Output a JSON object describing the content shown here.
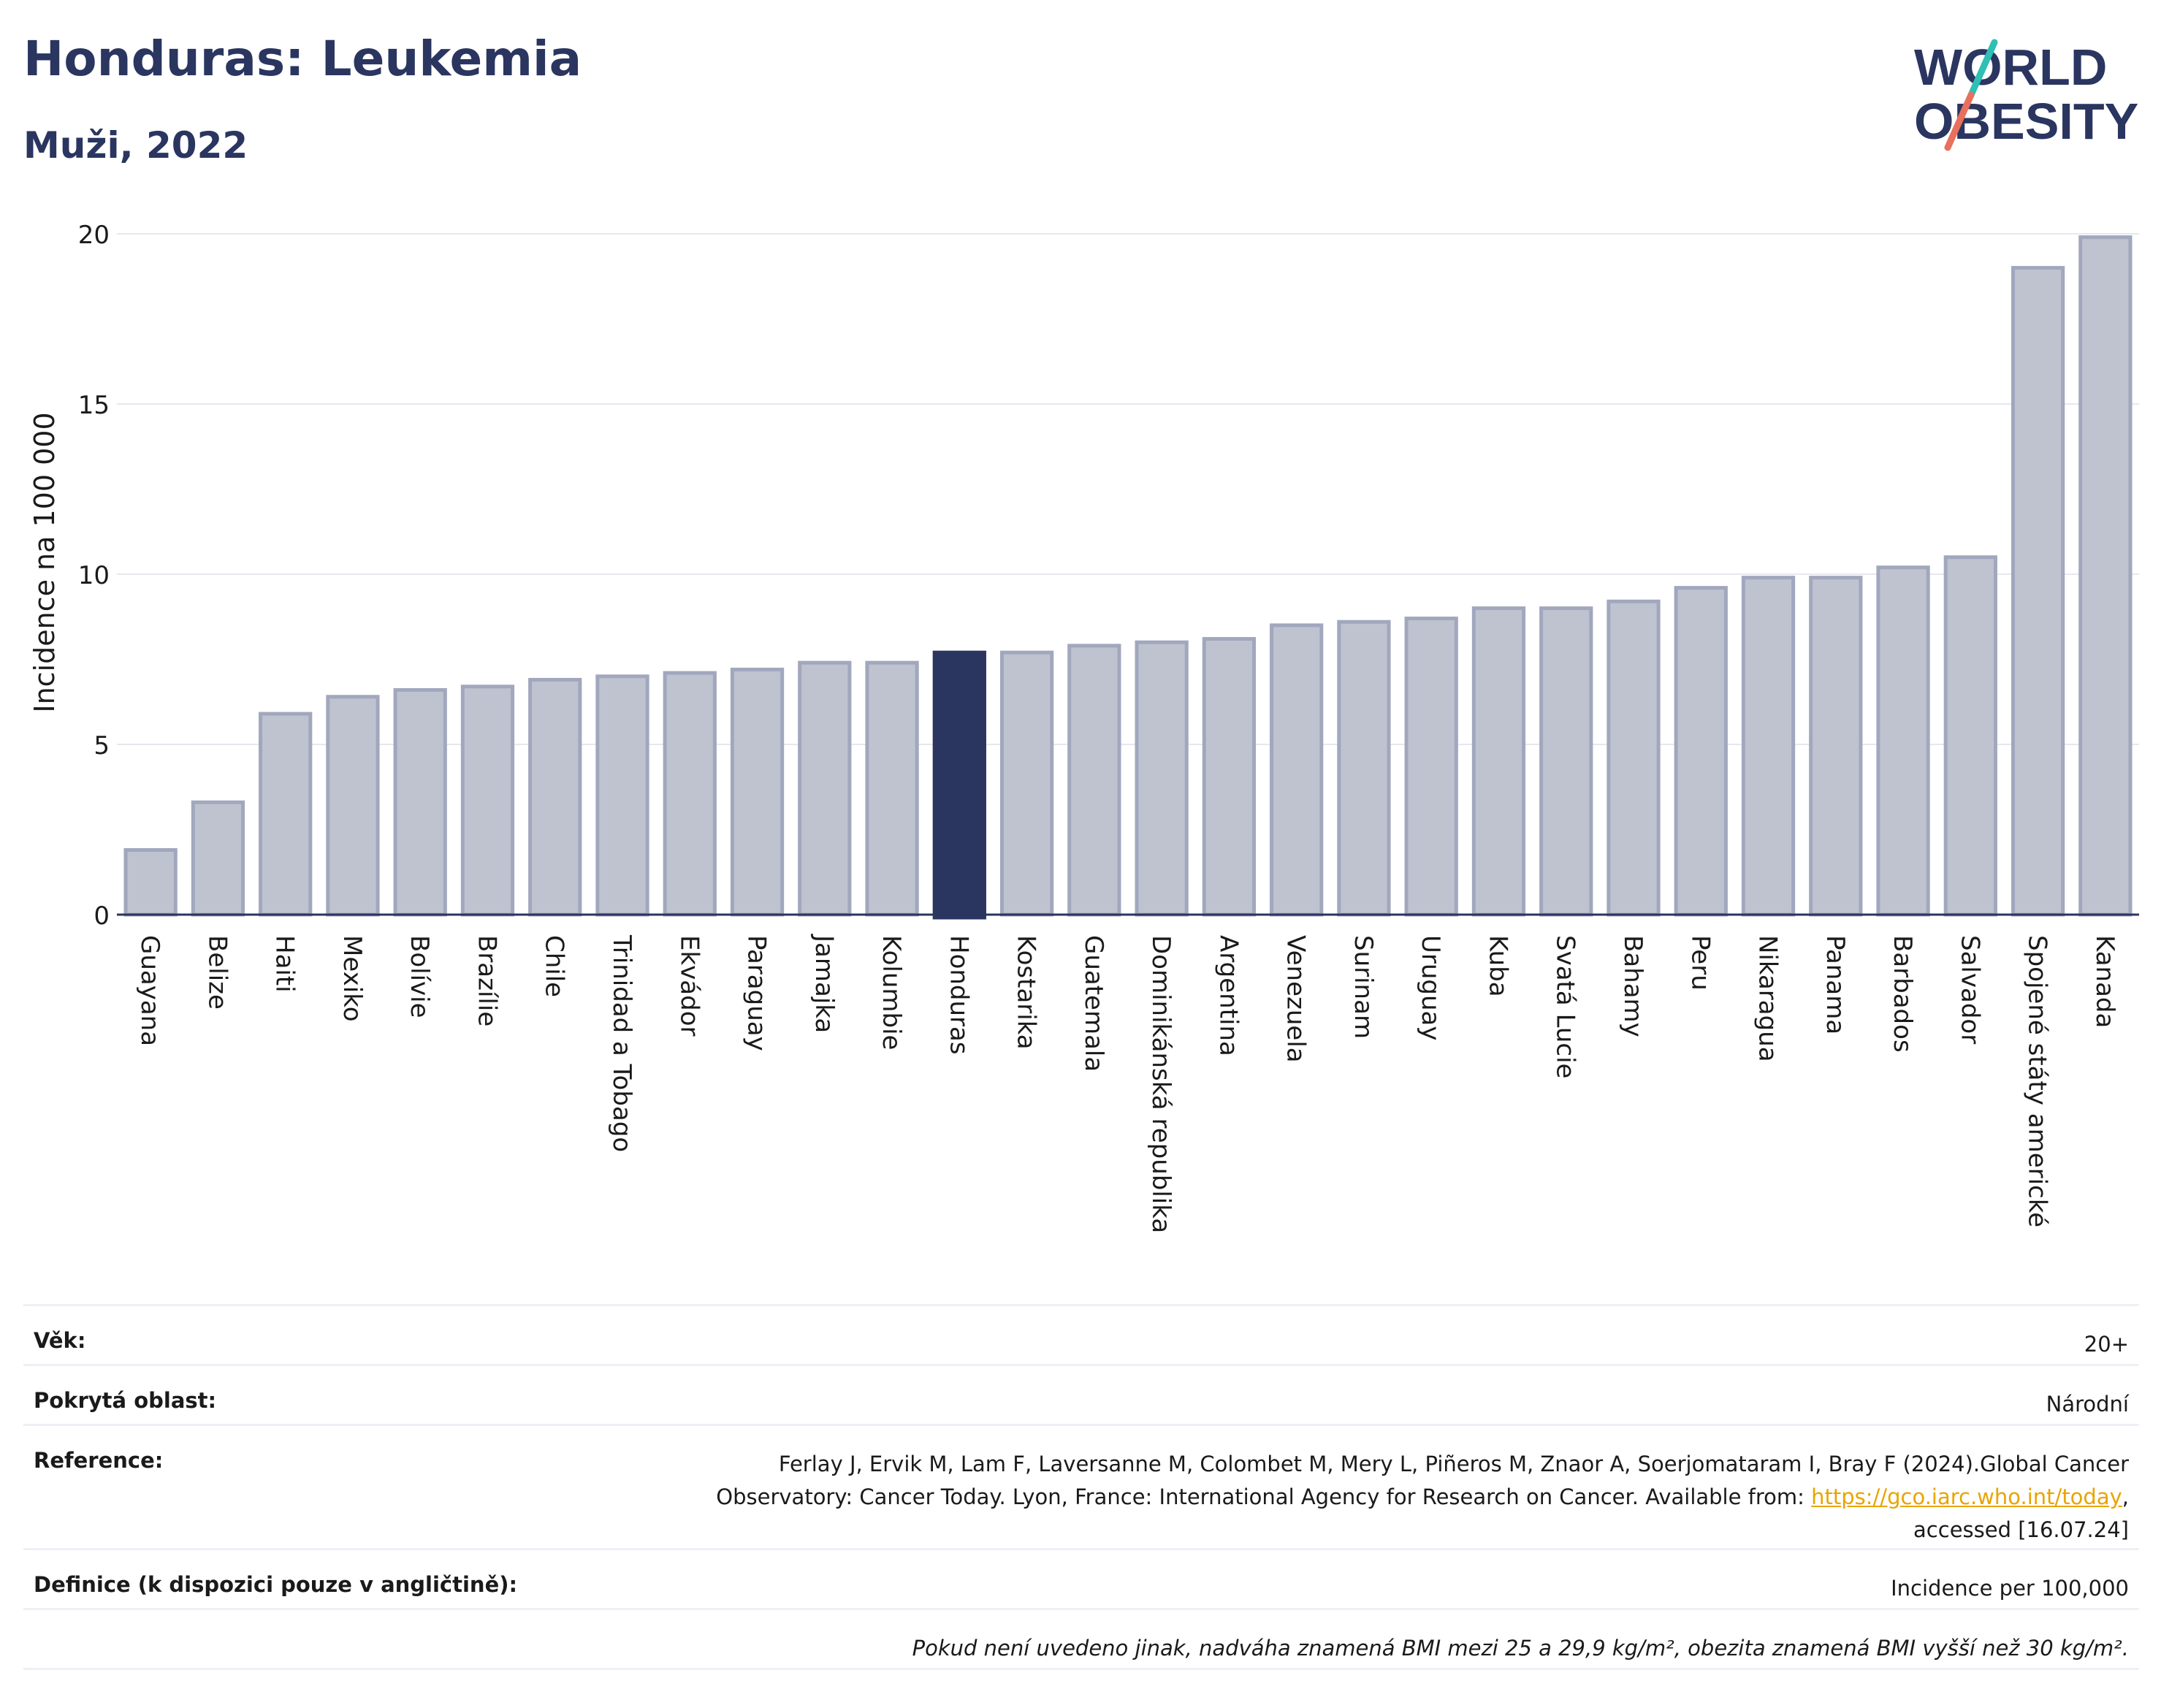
{
  "header": {
    "title": "Honduras: Leukemia",
    "subtitle": "Muži, 2022",
    "logo_line1": "WORLD",
    "logo_line2": "OBESITY"
  },
  "colors": {
    "bar": "#bfc3d0",
    "bar_border": "#a1a7bd",
    "highlight": "#2a3560",
    "grid": "#e6e8ef",
    "axis": "#2a3560",
    "logo_teal": "#2fbfb4",
    "logo_coral": "#e8705c"
  },
  "chart_data": {
    "type": "bar",
    "ylabel": "Incidence na 100 000",
    "ylim": [
      0,
      20
    ],
    "yticks": [
      "0",
      "5",
      "10",
      "15",
      "20"
    ],
    "grid": true,
    "highlight_category": "Honduras",
    "categories": [
      "Guayana",
      "Belize",
      "Haiti",
      "Mexiko",
      "Bolívie",
      "Brazílie",
      "Chile",
      "Trinidad a Tobago",
      "Ekvádor",
      "Paraguay",
      "Jamajka",
      "Kolumbie",
      "Honduras",
      "Kostarika",
      "Guatemala",
      "Dominikánská republika",
      "Argentina",
      "Venezuela",
      "Surinam",
      "Uruguay",
      "Kuba",
      "Svatá Lucie",
      "Bahamy",
      "Peru",
      "Nikaragua",
      "Panama",
      "Barbados",
      "Salvador",
      "Spojené státy americké",
      "Kanada"
    ],
    "values": [
      1.9,
      3.3,
      5.9,
      6.4,
      6.6,
      6.7,
      6.9,
      7.0,
      7.1,
      7.2,
      7.4,
      7.4,
      7.7,
      7.7,
      7.9,
      8.0,
      8.1,
      8.5,
      8.6,
      8.7,
      9.0,
      9.0,
      9.2,
      9.6,
      9.9,
      9.9,
      10.2,
      10.5,
      19.0,
      19.9
    ]
  },
  "info": {
    "age_label": "Věk:",
    "age_value": "20+",
    "area_label": "Pokrytá oblast:",
    "area_value": "Národní",
    "reference_label": "Reference:",
    "reference_text1": "Ferlay J, Ervik M, Lam F, Laversanne M, Colombet M, Mery L, Piñeros M, Znaor A, Soerjomataram I, Bray F (2024).Global Cancer",
    "reference_text2": "Observatory: Cancer Today. Lyon, France: International Agency for Research on Cancer. Available from: ",
    "reference_link": "https://gco.iarc.who.int/today",
    "reference_text3": ",",
    "reference_text4": "accessed [16.07.24]",
    "definition_label": "Definice (k dispozici pouze v angličtině):",
    "definition_value": "Incidence per 100,000",
    "note": "Pokud není uvedeno jinak, nadváha znamená BMI mezi 25 a 29,9 kg/m², obezita znamená BMI vyšší než 30 kg/m²."
  }
}
